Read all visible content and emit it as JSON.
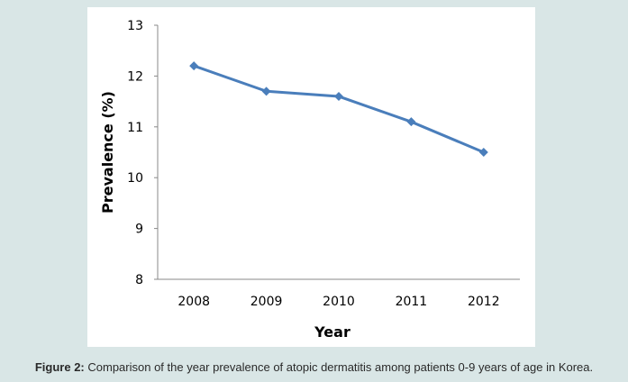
{
  "chart_data": {
    "type": "line",
    "x": [
      "2008",
      "2009",
      "2010",
      "2011",
      "2012"
    ],
    "series": [
      {
        "values": [
          12.2,
          11.7,
          11.6,
          11.1,
          10.5
        ],
        "color": "#4a7ebb",
        "marker": "diamond"
      }
    ],
    "xlabel": "Year",
    "ylabel": "Prevalence (%)",
    "ylim": [
      8,
      13
    ],
    "yticks": [
      "8",
      "9",
      "10",
      "11",
      "12",
      "13"
    ],
    "grid": false,
    "legend": "none"
  },
  "caption": {
    "label": "Figure 2:",
    "text": " Comparison of the year prevalence of atopic dermatitis among patients 0-9 years of age in Korea."
  }
}
